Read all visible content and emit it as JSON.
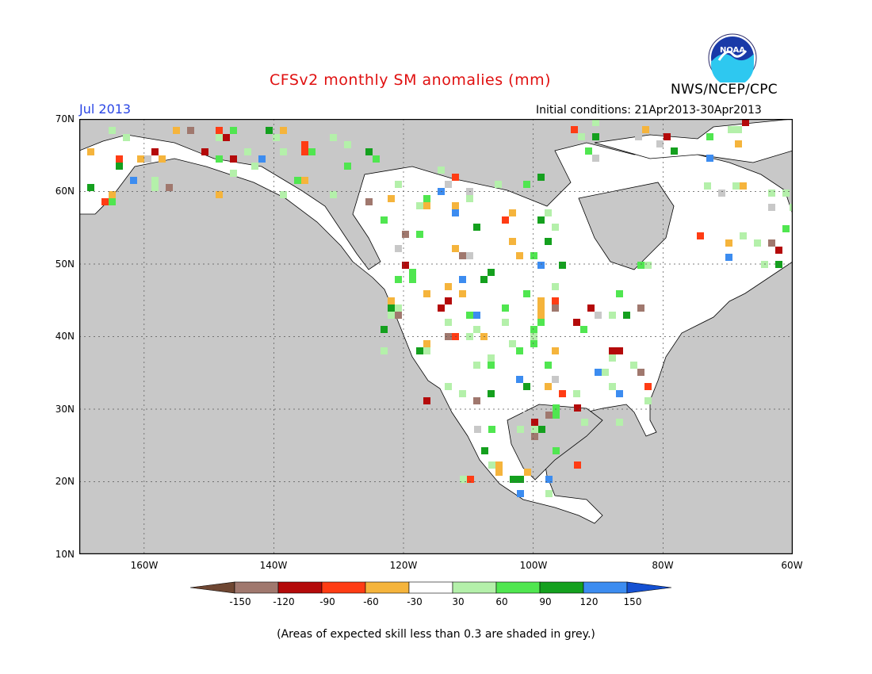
{
  "header": {
    "title": "CFSv2 monthly SM anomalies (mm)",
    "organization": "NWS/NCEP/CPC",
    "logo_text": "NOAA",
    "target_month": "Jul 2013",
    "initial_conditions": "Initial conditions: 21Apr2013-30Apr2013"
  },
  "map": {
    "region": "North America",
    "lat_labels": [
      "70N",
      "60N",
      "50N",
      "40N",
      "30N",
      "20N",
      "10N"
    ],
    "lon_labels": [
      "160W",
      "140W",
      "120W",
      "100W",
      "80W",
      "60W"
    ],
    "background_color": "#c8c8c8",
    "colors": {
      "neg150": "#a0786e",
      "neg120": "#b40a0a",
      "neg90": "#ff3c14",
      "neg60": "#f5b43c",
      "neutral": "#ffffff",
      "pos30": "#b4f0aa",
      "pos60": "#50e650",
      "pos90": "#14a01e",
      "pos120": "#3c8cf0",
      "grey": "#c8c8c8"
    }
  },
  "colorbar": {
    "ticks": [
      "-150",
      "-120",
      "-90",
      "-60",
      "-30",
      "30",
      "60",
      "90",
      "120",
      "150"
    ],
    "colors": [
      "#6e4632",
      "#a0786e",
      "#b40a0a",
      "#ff3c14",
      "#f5b43c",
      "#ffffff",
      "#b4f0aa",
      "#50e650",
      "#14a01e",
      "#3c8cf0",
      "#1450d2"
    ]
  },
  "footer": {
    "note": "(Areas of expected skill less than 0.3 are shaded in grey.)"
  }
}
